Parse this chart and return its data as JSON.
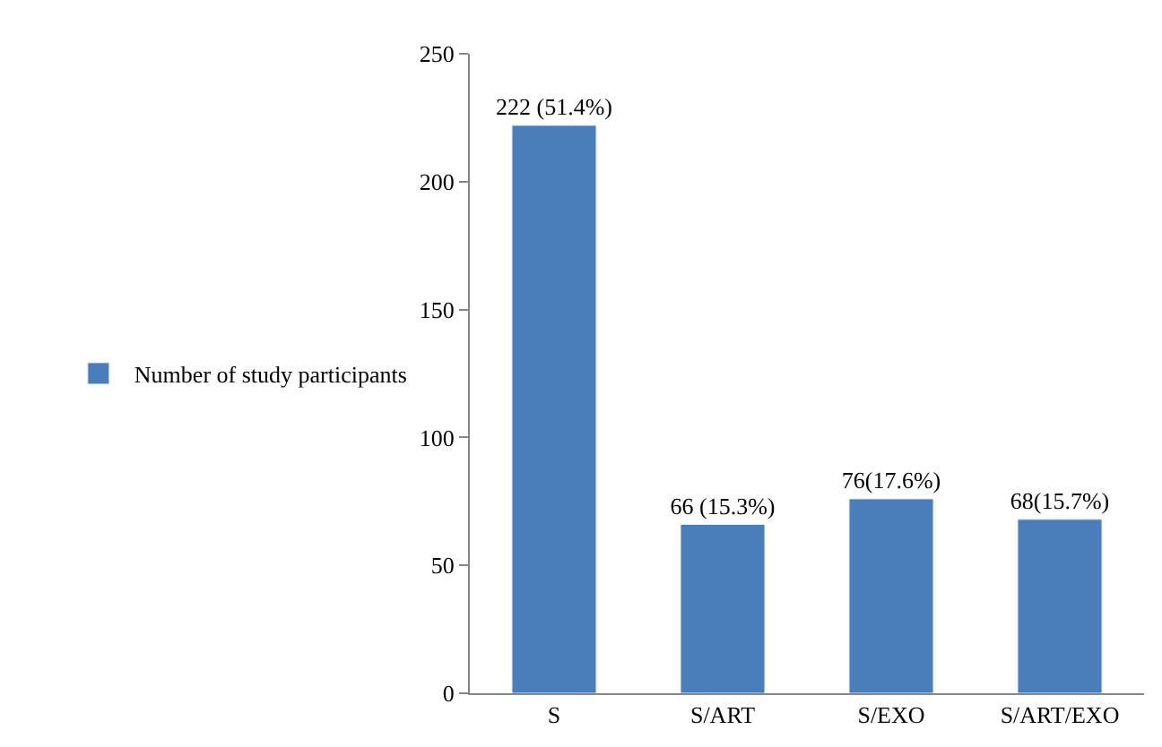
{
  "chart_data": {
    "type": "bar",
    "categories": [
      "S",
      "S/ART",
      "S/EXO",
      "S/ART/EXO"
    ],
    "series": [
      {
        "name": "Number of study participants",
        "color": "#4a7ebb",
        "values": [
          222,
          66,
          76,
          68
        ],
        "value_labels": [
          "222 (51.4%)",
          "66 (15.3%)",
          "76(17.6%)",
          "68(15.7%)"
        ]
      }
    ],
    "ylim": [
      0,
      250
    ],
    "yticks": [
      0,
      50,
      100,
      150,
      200,
      250
    ],
    "legend": "left"
  }
}
